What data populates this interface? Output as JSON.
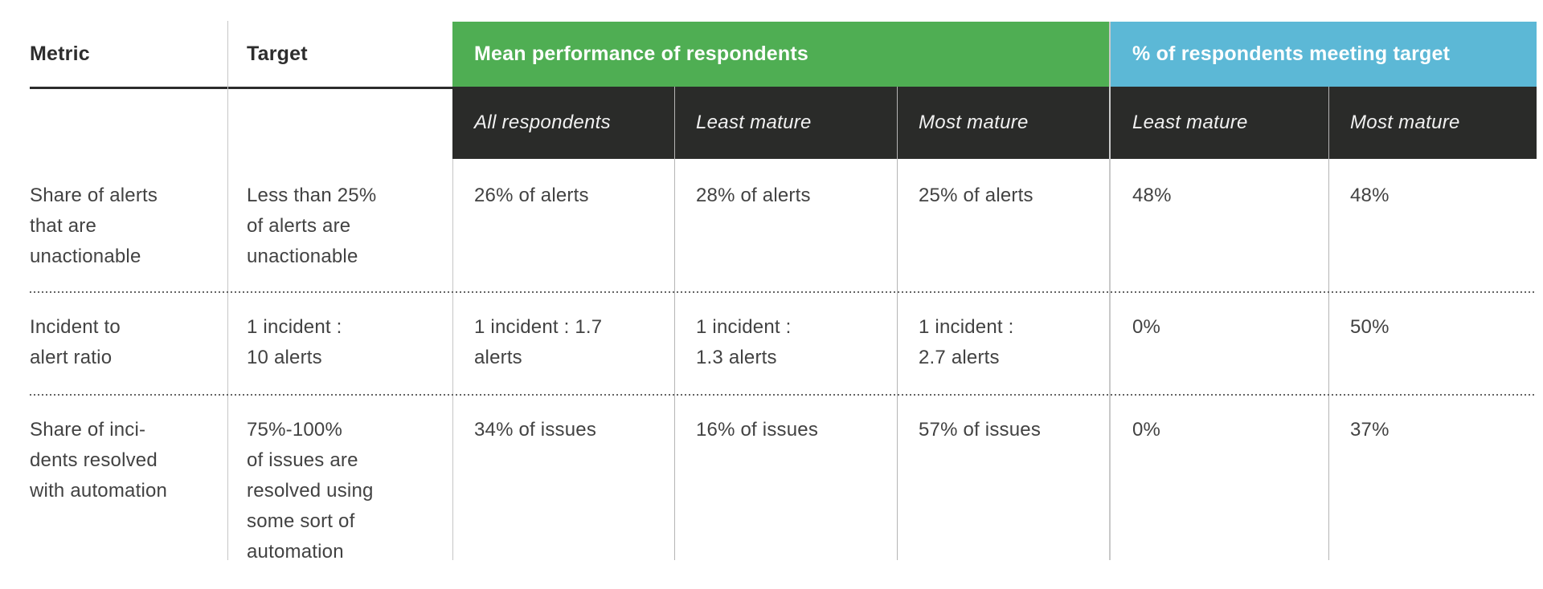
{
  "colors": {
    "green_header_bg": "#4fae53",
    "blue_header_bg": "#5cb8d6",
    "dark_subheader_bg": "#2a2b29",
    "header_text": "#ffffff",
    "body_text": "#424242",
    "corner_header_text": "#2d2d2d",
    "divider": "#b5b5b5",
    "underline": "#2c2c2c"
  },
  "table": {
    "corner_headers": [
      "Metric",
      "Target"
    ],
    "groups": [
      {
        "label": "Mean performance of respondents",
        "subcolumns": [
          "All respondents",
          "Least mature",
          "Most mature"
        ]
      },
      {
        "label": "% of respondents meeting target",
        "subcolumns": [
          "Least mature",
          "Most mature"
        ]
      }
    ],
    "rows": [
      {
        "cells": [
          "Share of alerts\nthat are\nunactionable",
          "Less than 25%\nof alerts are\nunactionable",
          "26% of alerts",
          "28% of alerts",
          "25% of alerts",
          "48%",
          "48%"
        ]
      },
      {
        "cells": [
          "Incident to\nalert ratio",
          "1 incident :\n10 alerts",
          "1 incident : 1.7\nalerts",
          "1 incident :\n1.3 alerts",
          "1 incident :\n2.7 alerts",
          "0%",
          "50%"
        ]
      },
      {
        "cells": [
          "Share of inci-\ndents resolved\nwith automation",
          "75%-100%\nof issues are\nresolved using\nsome sort of\nautomation",
          "34% of issues",
          "16% of issues",
          "57% of issues",
          "0%",
          "37%"
        ]
      }
    ]
  },
  "chart_data": {
    "type": "table",
    "columns": [
      "Metric",
      "Target",
      "Mean performance of respondents — All respondents",
      "Mean performance of respondents — Least mature",
      "Mean performance of respondents — Most mature",
      "% of respondents meeting target — Least mature",
      "% of respondents meeting target — Most mature"
    ],
    "rows": [
      [
        "Share of alerts that are unactionable",
        "Less than 25% of alerts are unactionable",
        "26% of alerts",
        "28% of alerts",
        "25% of alerts",
        "48%",
        "48%"
      ],
      [
        "Incident to alert ratio",
        "1 incident : 10 alerts",
        "1 incident : 1.7 alerts",
        "1 incident : 1.3 alerts",
        "1 incident : 2.7 alerts",
        "0%",
        "50%"
      ],
      [
        "Share of incidents resolved with automation",
        "75%-100% of issues are resolved using some sort of automation",
        "34% of issues",
        "16% of issues",
        "57% of issues",
        "0%",
        "37%"
      ]
    ],
    "layout": {
      "group_header_colors": [
        "#4fae53",
        "#5cb8d6"
      ],
      "subheader_style": "dark italic",
      "row_separator": "dotted"
    }
  }
}
